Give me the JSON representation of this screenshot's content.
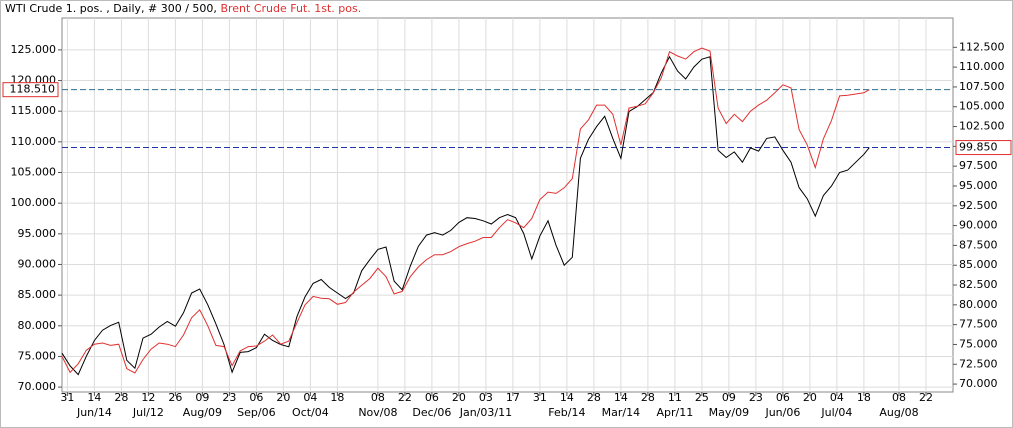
{
  "chart_data": {
    "type": "line",
    "subtitle": ", Daily, # 300 / 500,",
    "xlim": [
      0,
      330
    ],
    "xticks": [
      {
        "value": 2,
        "label": "31"
      },
      {
        "value": 12,
        "label": "14"
      },
      {
        "value": 22,
        "label": "28"
      },
      {
        "value": 32,
        "label": "12"
      },
      {
        "value": 42,
        "label": "26"
      },
      {
        "value": 52,
        "label": "09"
      },
      {
        "value": 62,
        "label": "23"
      },
      {
        "value": 72,
        "label": "06"
      },
      {
        "value": 82,
        "label": "20"
      },
      {
        "value": 92,
        "label": "04"
      },
      {
        "value": 102,
        "label": "18"
      },
      {
        "value": 117,
        "label": "08"
      },
      {
        "value": 127,
        "label": "22"
      },
      {
        "value": 137,
        "label": "06"
      },
      {
        "value": 147,
        "label": "20"
      },
      {
        "value": 157,
        "label": "03"
      },
      {
        "value": 167,
        "label": "17"
      },
      {
        "value": 177,
        "label": "31"
      },
      {
        "value": 187,
        "label": "14"
      },
      {
        "value": 197,
        "label": "28"
      },
      {
        "value": 207,
        "label": "14"
      },
      {
        "value": 217,
        "label": "28"
      },
      {
        "value": 227,
        "label": "11"
      },
      {
        "value": 237,
        "label": "25"
      },
      {
        "value": 247,
        "label": "09"
      },
      {
        "value": 257,
        "label": "23"
      },
      {
        "value": 267,
        "label": "06"
      },
      {
        "value": 277,
        "label": "20"
      },
      {
        "value": 287,
        "label": "04"
      },
      {
        "value": 297,
        "label": "18"
      },
      {
        "value": 310,
        "label": "08"
      },
      {
        "value": 320,
        "label": "22"
      }
    ],
    "x_month_labels": [
      {
        "value": 12,
        "label": "Jun/14"
      },
      {
        "value": 32,
        "label": "Jul/12"
      },
      {
        "value": 52,
        "label": "Aug/09"
      },
      {
        "value": 72,
        "label": "Sep/06"
      },
      {
        "value": 92,
        "label": "Oct/04"
      },
      {
        "value": 117,
        "label": "Nov/08"
      },
      {
        "value": 137,
        "label": "Dec/06"
      },
      {
        "value": 157,
        "label": "Jan/03/11"
      },
      {
        "value": 187,
        "label": "Feb/14"
      },
      {
        "value": 207,
        "label": "Mar/14"
      },
      {
        "value": 227,
        "label": "Apr/11"
      },
      {
        "value": 247,
        "label": "May/09"
      },
      {
        "value": 267,
        "label": "Jun/06"
      },
      {
        "value": 287,
        "label": "Jul/04"
      },
      {
        "value": 310,
        "label": "Aug/08"
      }
    ],
    "ylim": [
      69.2,
      130.2
    ],
    "yticks": [
      {
        "value": 70,
        "label": "70.000"
      },
      {
        "value": 75,
        "label": "75.000"
      },
      {
        "value": 80,
        "label": "80.000"
      },
      {
        "value": 85,
        "label": "85.000"
      },
      {
        "value": 90,
        "label": "90.000"
      },
      {
        "value": 95,
        "label": "95.000"
      },
      {
        "value": 100,
        "label": "100.000"
      },
      {
        "value": 105,
        "label": "105.000"
      },
      {
        "value": 110,
        "label": "110.000"
      },
      {
        "value": 115,
        "label": "115.000"
      },
      {
        "value": 120,
        "label": "120.000"
      },
      {
        "value": 125,
        "label": "125.000"
      }
    ],
    "y2lim": [
      69.0,
      116.2
    ],
    "y2ticks": [
      {
        "value": 70,
        "label": "70.000"
      },
      {
        "value": 72.5,
        "label": "72.500"
      },
      {
        "value": 75,
        "label": "75.000"
      },
      {
        "value": 77.5,
        "label": "77.500"
      },
      {
        "value": 80,
        "label": "80.000"
      },
      {
        "value": 82.5,
        "label": "82.500"
      },
      {
        "value": 85,
        "label": "85.000"
      },
      {
        "value": 87.5,
        "label": "87.500"
      },
      {
        "value": 90,
        "label": "90.000"
      },
      {
        "value": 92.5,
        "label": "92.500"
      },
      {
        "value": 95,
        "label": "95.000"
      },
      {
        "value": 97.5,
        "label": "97.500"
      },
      {
        "value": 100,
        "label": "100.000"
      },
      {
        "value": 102.5,
        "label": "102.500"
      },
      {
        "value": 105,
        "label": "105.000"
      },
      {
        "value": 107.5,
        "label": "107.500"
      },
      {
        "value": 110,
        "label": "110.000"
      },
      {
        "value": 112.5,
        "label": "112.500"
      }
    ],
    "grid": true,
    "x": [
      0,
      3,
      6,
      9,
      12,
      15,
      18,
      21,
      24,
      27,
      30,
      33,
      36,
      39,
      42,
      45,
      48,
      51,
      54,
      57,
      60,
      63,
      66,
      69,
      72,
      75,
      78,
      81,
      84,
      87,
      90,
      93,
      96,
      99,
      102,
      105,
      108,
      111,
      114,
      117,
      120,
      123,
      126,
      129,
      132,
      135,
      138,
      141,
      144,
      147,
      150,
      153,
      156,
      159,
      162,
      165,
      168,
      171,
      174,
      177,
      180,
      183,
      186,
      189,
      192,
      195,
      198,
      201,
      204,
      207,
      210,
      213,
      216,
      219,
      222,
      225,
      228,
      231,
      234,
      237,
      240,
      243,
      246,
      249,
      252,
      255,
      258,
      261,
      264,
      267,
      270,
      273,
      276,
      279,
      282,
      285,
      288,
      291,
      294,
      297,
      299
    ],
    "series": [
      {
        "name": "WTI Crude 1. pos.",
        "color": "#000000",
        "axis": "y2",
        "ref_color": "#2233aa",
        "last_label": "99.850",
        "values": [
          73.9,
          72.3,
          71.2,
          73.5,
          75.5,
          76.8,
          77.4,
          77.8,
          73.0,
          72.0,
          75.8,
          76.3,
          77.2,
          77.9,
          77.3,
          79.0,
          81.5,
          82.0,
          80.0,
          77.6,
          75.0,
          71.5,
          74.0,
          74.1,
          74.6,
          76.3,
          75.5,
          75.0,
          74.7,
          78.5,
          81.0,
          82.7,
          83.2,
          82.2,
          81.5,
          80.8,
          81.5,
          84.3,
          85.7,
          87.0,
          87.3,
          83.0,
          81.9,
          84.9,
          87.4,
          88.8,
          89.1,
          88.8,
          89.4,
          90.4,
          91.0,
          90.9,
          90.6,
          90.2,
          91.0,
          91.4,
          91.0,
          89.0,
          85.8,
          88.7,
          90.6,
          87.5,
          85.0,
          86.0,
          98.5,
          100.9,
          102.5,
          103.8,
          101.0,
          98.5,
          104.4,
          105.0,
          105.9,
          106.8,
          109.3,
          111.3,
          109.5,
          108.5,
          110.0,
          111.0,
          111.3,
          99.5,
          98.6,
          99.3,
          98.0,
          99.8,
          99.4,
          101.0,
          101.2,
          99.5,
          98.0,
          94.8,
          93.4,
          91.2,
          93.8,
          95.0,
          96.7,
          97.0,
          98.0,
          99.0,
          99.85
        ]
      },
      {
        "name": "Brent Crude Fut. 1st. pos.",
        "color": "#e03030",
        "ref_color": "#2f7090",
        "last_label": "118.510",
        "values": [
          75.0,
          72.4,
          73.8,
          76.0,
          77.0,
          77.2,
          76.8,
          77.0,
          73.0,
          72.3,
          74.5,
          76.2,
          77.2,
          77.0,
          76.6,
          78.5,
          81.3,
          82.6,
          80.0,
          76.8,
          76.6,
          73.5,
          75.9,
          76.6,
          76.7,
          77.5,
          78.5,
          77.0,
          77.5,
          80.5,
          83.4,
          84.8,
          84.5,
          84.4,
          83.5,
          83.8,
          85.5,
          86.6,
          87.7,
          89.4,
          88.0,
          85.2,
          85.6,
          88.0,
          89.6,
          90.8,
          91.6,
          91.6,
          92.1,
          92.9,
          93.4,
          93.8,
          94.4,
          94.4,
          96.0,
          97.3,
          96.8,
          96.0,
          97.5,
          100.6,
          101.8,
          101.6,
          102.5,
          104.0,
          112.1,
          113.6,
          116.0,
          116.0,
          114.5,
          109.5,
          115.5,
          115.8,
          116.2,
          118.0,
          120.5,
          124.7,
          124.0,
          123.5,
          124.7,
          125.3,
          124.8,
          115.5,
          113.0,
          114.5,
          113.3,
          115.0,
          116.0,
          116.8,
          118.0,
          119.3,
          118.8,
          112.0,
          109.5,
          105.8,
          110.5,
          113.5,
          117.5,
          117.6,
          117.8,
          118.0,
          118.51
        ]
      }
    ]
  }
}
